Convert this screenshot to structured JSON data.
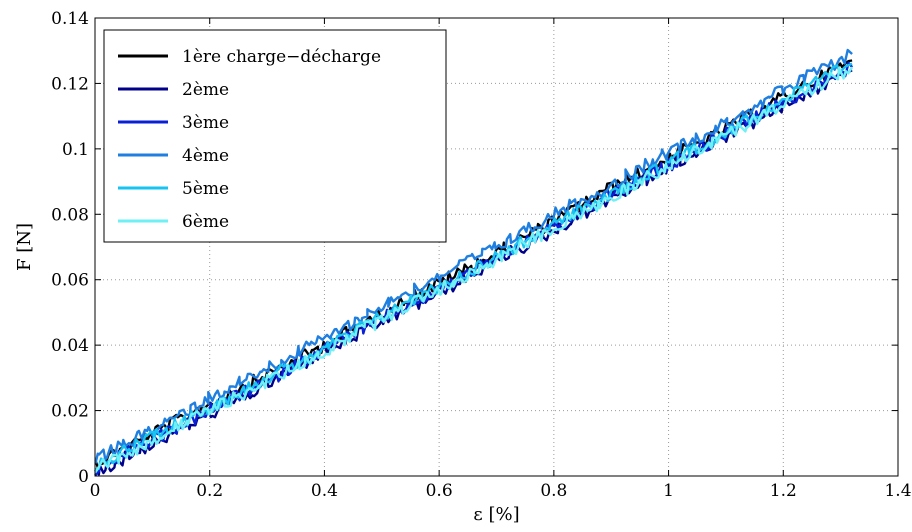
{
  "chart_data": {
    "type": "line",
    "title": "",
    "xlabel": "ε [%]",
    "ylabel": "F [N]",
    "xlim": [
      0,
      1.4
    ],
    "ylim": [
      0,
      0.14
    ],
    "xticks": [
      0,
      0.2,
      0.4,
      0.6,
      0.8,
      1,
      1.2,
      1.4
    ],
    "xtick_labels": [
      "0",
      "0.2",
      "0.4",
      "0.6",
      "0.8",
      "1",
      "1.2",
      "1.4"
    ],
    "yticks": [
      0,
      0.02,
      0.04,
      0.06,
      0.08,
      0.1,
      0.12,
      0.14
    ],
    "ytick_labels": [
      "0",
      "0.02",
      "0.04",
      "0.06",
      "0.08",
      "0.1",
      "0.12",
      "0.14"
    ],
    "grid": true,
    "legend_position": "top-left",
    "series": [
      {
        "name": "1ère charge−décharge",
        "color": "#000000",
        "x": [
          0,
          0.1,
          0.2,
          0.3,
          0.4,
          0.5,
          0.6,
          0.7,
          0.8,
          0.9,
          1.0,
          1.1,
          1.2,
          1.32
        ],
        "y": [
          0.004,
          0.013,
          0.022,
          0.031,
          0.04,
          0.05,
          0.059,
          0.068,
          0.078,
          0.088,
          0.097,
          0.106,
          0.116,
          0.127
        ]
      },
      {
        "name": "2ème",
        "color": "#00008b",
        "x": [
          0,
          0.1,
          0.2,
          0.3,
          0.4,
          0.5,
          0.6,
          0.7,
          0.8,
          0.9,
          1.0,
          1.1,
          1.2,
          1.32
        ],
        "y": [
          0.001,
          0.01,
          0.019,
          0.028,
          0.038,
          0.047,
          0.056,
          0.066,
          0.075,
          0.085,
          0.094,
          0.104,
          0.113,
          0.124
        ]
      },
      {
        "name": "3ème",
        "color": "#0a1fd6",
        "x": [
          0,
          0.1,
          0.2,
          0.3,
          0.4,
          0.5,
          0.6,
          0.7,
          0.8,
          0.9,
          1.0,
          1.1,
          1.2,
          1.32
        ],
        "y": [
          0.002,
          0.011,
          0.02,
          0.029,
          0.039,
          0.048,
          0.057,
          0.067,
          0.076,
          0.086,
          0.095,
          0.105,
          0.114,
          0.125
        ]
      },
      {
        "name": "4ème",
        "color": "#1e7fe0",
        "x": [
          0,
          0.1,
          0.2,
          0.3,
          0.4,
          0.5,
          0.6,
          0.7,
          0.8,
          0.9,
          1.0,
          1.1,
          1.2,
          1.32
        ],
        "y": [
          0.005,
          0.014,
          0.024,
          0.033,
          0.042,
          0.052,
          0.061,
          0.07,
          0.08,
          0.089,
          0.099,
          0.108,
          0.118,
          0.129
        ]
      },
      {
        "name": "5ème",
        "color": "#17c3f0",
        "x": [
          0,
          0.1,
          0.2,
          0.3,
          0.4,
          0.5,
          0.6,
          0.7,
          0.8,
          0.9,
          1.0,
          1.1,
          1.2,
          1.32
        ],
        "y": [
          0.003,
          0.012,
          0.021,
          0.03,
          0.039,
          0.049,
          0.058,
          0.067,
          0.077,
          0.086,
          0.096,
          0.105,
          0.115,
          0.126
        ]
      },
      {
        "name": "6ème",
        "color": "#6ef0f5",
        "x": [
          0,
          0.1,
          0.2,
          0.3,
          0.4,
          0.5,
          0.6,
          0.7,
          0.8,
          0.9,
          1.0,
          1.1,
          1.2,
          1.32
        ],
        "y": [
          0.002,
          0.011,
          0.02,
          0.029,
          0.038,
          0.048,
          0.057,
          0.066,
          0.076,
          0.085,
          0.095,
          0.104,
          0.114,
          0.125
        ]
      }
    ]
  }
}
